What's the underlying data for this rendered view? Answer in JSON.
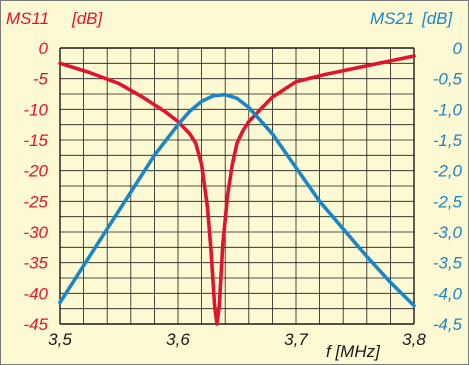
{
  "chart_data": {
    "type": "line",
    "grid": true,
    "left_axis": {
      "label": "MS11",
      "unit": "[dB]",
      "ticks": [
        "0",
        "-5",
        "-10",
        "-15",
        "-20",
        "-25",
        "-30",
        "-35",
        "-40",
        "-45"
      ],
      "ylim": [
        -45,
        0
      ],
      "color": "#e0142e"
    },
    "right_axis": {
      "label": "MS21",
      "unit": "[dB]",
      "ticks": [
        "0",
        "-0,5",
        "-1,0",
        "-1,5",
        "-2,0",
        "-2,5",
        "-3,0",
        "-3,5",
        "-4,0",
        "-4,5"
      ],
      "ylim": [
        -4.5,
        0
      ],
      "color": "#1a86c6"
    },
    "x_axis": {
      "label": "f [MHz]",
      "ticks": [
        "3,5",
        "3,6",
        "3,7",
        "3,8"
      ],
      "xlim": [
        3.5,
        3.8
      ]
    },
    "series": [
      {
        "name": "MS11",
        "axis": "left",
        "color": "#e0142e",
        "x": [
          3.5,
          3.525,
          3.55,
          3.57,
          3.59,
          3.6,
          3.61,
          3.615,
          3.62,
          3.625,
          3.628,
          3.631,
          3.633,
          3.635,
          3.638,
          3.642,
          3.646,
          3.65,
          3.655,
          3.66,
          3.67,
          3.68,
          3.7,
          3.725,
          3.75,
          3.775,
          3.8
        ],
        "y": [
          -2.5,
          -4.0,
          -5.8,
          -8.0,
          -10.5,
          -12.0,
          -14.0,
          -15.5,
          -19.0,
          -26.0,
          -33.0,
          -42.0,
          -45.0,
          -42.0,
          -32.0,
          -24.0,
          -19.0,
          -15.5,
          -13.5,
          -12.0,
          -10.0,
          -8.0,
          -5.5,
          -4.3,
          -3.3,
          -2.3,
          -1.3
        ]
      },
      {
        "name": "MS21",
        "axis": "right",
        "color": "#1a86c6",
        "x": [
          3.5,
          3.52,
          3.54,
          3.56,
          3.58,
          3.6,
          3.61,
          3.62,
          3.63,
          3.64,
          3.65,
          3.66,
          3.68,
          3.7,
          3.72,
          3.74,
          3.76,
          3.78,
          3.8
        ],
        "y": [
          -4.15,
          -3.55,
          -2.95,
          -2.35,
          -1.75,
          -1.25,
          -1.03,
          -0.87,
          -0.78,
          -0.76,
          -0.82,
          -0.97,
          -1.4,
          -1.95,
          -2.5,
          -2.95,
          -3.4,
          -3.82,
          -4.2
        ]
      }
    ]
  }
}
